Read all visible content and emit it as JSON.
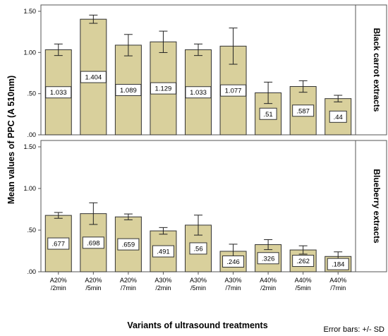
{
  "chart_data": {
    "type": "bar",
    "ylabel": "Mean values of PPC (A 510nm)",
    "xlabel": "Variants of ultrasound treatments",
    "footnote": "Error bars: +/- SD",
    "ylim": [
      0,
      1.5
    ],
    "yticks": [
      ".00",
      ".50",
      "1.00",
      "1.50"
    ],
    "grid": false,
    "bar_color": "#d9d09c",
    "categories": [
      [
        "A20%",
        "/2min"
      ],
      [
        "A20%",
        "/5min"
      ],
      [
        "A20%",
        "/7min"
      ],
      [
        "A30%",
        "/2min"
      ],
      [
        "A30%",
        "/5min"
      ],
      [
        "A30%",
        "/7min"
      ],
      [
        "A40%",
        "/2min"
      ],
      [
        "A40%",
        "/5min"
      ],
      [
        "A40%",
        "/7min"
      ]
    ],
    "panels": [
      {
        "name": "Black carrot extracts",
        "values": [
          1.033,
          1.404,
          1.089,
          1.129,
          1.033,
          1.077,
          0.51,
          0.587,
          0.44
        ],
        "labels": [
          "1.033",
          "1.404",
          "1.089",
          "1.129",
          "1.033",
          "1.077",
          ".51",
          ".587",
          ".44"
        ],
        "sd": [
          0.07,
          0.05,
          0.13,
          0.13,
          0.07,
          0.22,
          0.13,
          0.07,
          0.04
        ]
      },
      {
        "name": "Blueberry extracts",
        "values": [
          0.677,
          0.698,
          0.659,
          0.491,
          0.56,
          0.246,
          0.326,
          0.262,
          0.184
        ],
        "labels": [
          ".677",
          ".698",
          ".659",
          ".491",
          ".56",
          ".246",
          ".326",
          ".262",
          ".184"
        ],
        "sd": [
          0.035,
          0.13,
          0.035,
          0.04,
          0.12,
          0.085,
          0.06,
          0.05,
          0.055
        ]
      }
    ]
  }
}
